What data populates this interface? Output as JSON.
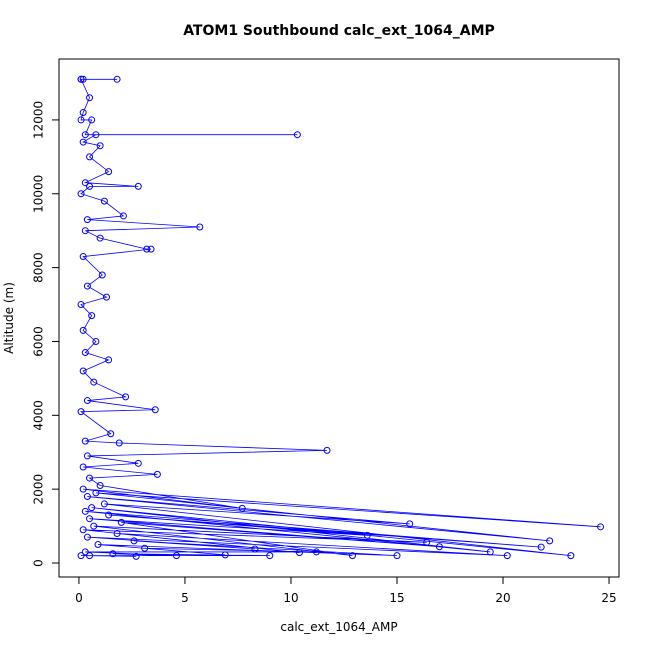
{
  "chart_data": {
    "type": "line",
    "title": "ATOM1 Southbound calc_ext_1064_AMP",
    "xlabel": "calc_ext_1064_AMP",
    "ylabel": "Altitude (m)",
    "color": "#0000ff",
    "markers": true,
    "xlim": [
      -0.94,
      25.47
    ],
    "ylim": [
      -379,
      13650
    ],
    "xticks": [
      0,
      5,
      10,
      15,
      20,
      25
    ],
    "yticks": [
      0,
      2000,
      4000,
      6000,
      8000,
      10000,
      12000
    ],
    "x": [
      0.1,
      0.2,
      1.8,
      0.1,
      0.5,
      0.2,
      0.1,
      0.6,
      0.3,
      10.3,
      0.8,
      0.2,
      1.0,
      0.5,
      1.4,
      0.3,
      2.8,
      0.5,
      0.1,
      1.2,
      2.1,
      0.4,
      5.7,
      0.3,
      1.0,
      3.2,
      3.4,
      0.2,
      1.1,
      0.4,
      1.3,
      0.1,
      0.6,
      0.2,
      0.8,
      0.3,
      1.4,
      0.2,
      0.7,
      2.2,
      0.4,
      3.6,
      0.1,
      1.5,
      0.3,
      1.9,
      11.7,
      0.4,
      2.8,
      0.2,
      3.7,
      0.5,
      1.0,
      7.7,
      0.2,
      24.6,
      0.8,
      22.2,
      0.4,
      15.6,
      1.2,
      23.2,
      0.6,
      19.4,
      0.3,
      21.8,
      1.4,
      13.6,
      0.5,
      17.0,
      2.0,
      12.9,
      0.7,
      16.4,
      0.2,
      10.4,
      1.8,
      20.2,
      0.4,
      8.3,
      2.6,
      15.0,
      0.9,
      6.9,
      3.1,
      11.2,
      0.3,
      4.6,
      1.6,
      9.0,
      0.1,
      2.7,
      0.5
    ],
    "y": [
      13100,
      13100,
      13100,
      13100,
      12600,
      12200,
      12000,
      12000,
      11600,
      11600,
      11600,
      11400,
      11300,
      11000,
      10600,
      10300,
      10200,
      10200,
      10000,
      9800,
      9400,
      9300,
      9100,
      9000,
      8800,
      8500,
      8500,
      8300,
      7800,
      7500,
      7200,
      7000,
      6700,
      6300,
      6000,
      5700,
      5500,
      5200,
      4900,
      4500,
      4400,
      4150,
      4100,
      3500,
      3300,
      3250,
      3050,
      2900,
      2700,
      2600,
      2400,
      2300,
      2100,
      1480,
      2000,
      980,
      1900,
      600,
      1800,
      1060,
      1600,
      200,
      1500,
      300,
      1400,
      430,
      1300,
      750,
      1200,
      440,
      1100,
      200,
      1000,
      560,
      900,
      280,
      800,
      200,
      700,
      380,
      600,
      200,
      500,
      220,
      400,
      300,
      300,
      200,
      250,
      200,
      200,
      180,
      200
    ]
  }
}
